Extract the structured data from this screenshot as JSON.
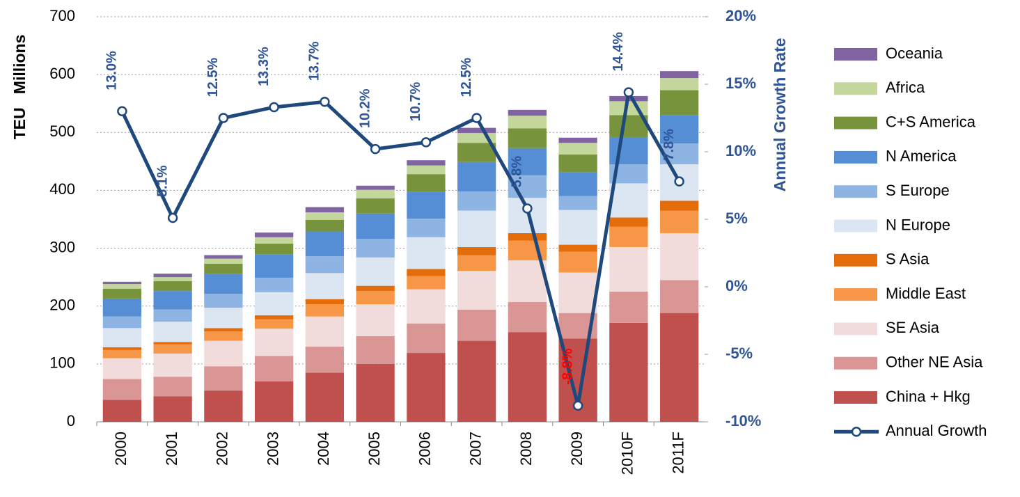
{
  "chart_data": {
    "type": "bar",
    "stacked": true,
    "y_label": "TEU   Millions",
    "y2_label": "Annual Growth Rate",
    "categories": [
      "2000",
      "2001",
      "2002",
      "2003",
      "2004",
      "2005",
      "2006",
      "2007",
      "2008",
      "2009",
      "2010F",
      "2011F"
    ],
    "ylim": [
      0,
      700
    ],
    "yticks": [
      0,
      100,
      200,
      300,
      400,
      500,
      600,
      700
    ],
    "y2lim": [
      -10,
      20
    ],
    "y2ticks": [
      {
        "value": -10,
        "label": "-10%"
      },
      {
        "value": -5,
        "label": "-5%"
      },
      {
        "value": 0,
        "label": "0%"
      },
      {
        "value": 5,
        "label": "5%"
      },
      {
        "value": 10,
        "label": "10%"
      },
      {
        "value": 15,
        "label": "15%"
      },
      {
        "value": 20,
        "label": "20%"
      }
    ],
    "grid": true,
    "legend": "right",
    "negative_label_color": "#ff0000",
    "series": [
      {
        "name": "China + Hkg",
        "color": "#c0504d",
        "values": [
          38,
          44,
          54,
          70,
          85,
          100,
          119,
          140,
          155,
          144,
          171,
          188
        ]
      },
      {
        "name": "Other NE Asia",
        "color": "#d99694",
        "values": [
          36,
          34,
          42,
          44,
          45,
          48,
          51,
          54,
          52,
          44,
          54,
          57
        ]
      },
      {
        "name": "SE Asia",
        "color": "#f2dcdb",
        "values": [
          36,
          40,
          44,
          47,
          52,
          55,
          59,
          67,
          72,
          70,
          77,
          81
        ]
      },
      {
        "name": "Middle East",
        "color": "#f79646",
        "values": [
          14,
          16,
          16,
          16,
          21,
          23,
          23,
          27,
          34,
          36,
          35,
          39
        ]
      },
      {
        "name": "S Asia",
        "color": "#e46c0a",
        "values": [
          5,
          4,
          6,
          7,
          9,
          9,
          12,
          14,
          13,
          12,
          16,
          17
        ]
      },
      {
        "name": "N Europe",
        "color": "#dce6f2",
        "values": [
          33,
          35,
          35,
          40,
          45,
          49,
          55,
          63,
          61,
          60,
          59,
          63
        ]
      },
      {
        "name": "S Europe",
        "color": "#8eb4e3",
        "values": [
          20,
          21,
          24,
          25,
          29,
          32,
          32,
          33,
          39,
          24,
          33,
          36
        ]
      },
      {
        "name": "N America",
        "color": "#558ed5",
        "values": [
          31,
          32,
          35,
          40,
          43,
          44,
          47,
          51,
          47,
          41,
          47,
          49
        ]
      },
      {
        "name": "C+S America",
        "color": "#77933c",
        "values": [
          17,
          17,
          17,
          19,
          20,
          26,
          30,
          33,
          34,
          31,
          38,
          43
        ]
      },
      {
        "name": "Africa",
        "color": "#c3d69b",
        "values": [
          8,
          7,
          9,
          11,
          13,
          15,
          15,
          17,
          22,
          20,
          24,
          21
        ]
      },
      {
        "name": "Oceania",
        "color": "#8064a2",
        "values": [
          4,
          6,
          6,
          8,
          9,
          7,
          9,
          9,
          10,
          9,
          9,
          12
        ]
      },
      {
        "name": "Annual Growth",
        "type": "line",
        "axis": "y2",
        "color": "#1f497d",
        "values": [
          13.0,
          5.1,
          12.5,
          13.3,
          13.7,
          10.2,
          10.7,
          12.5,
          5.8,
          -8.8,
          14.4,
          7.8
        ],
        "value_labels": [
          "13.0%",
          "5.1%",
          "12.5%",
          "13.3%",
          "13.7%",
          "10.2%",
          "10.7%",
          "12.5%",
          "5.8%",
          "-8.8%",
          "14.4%",
          "7.8%"
        ]
      }
    ]
  }
}
